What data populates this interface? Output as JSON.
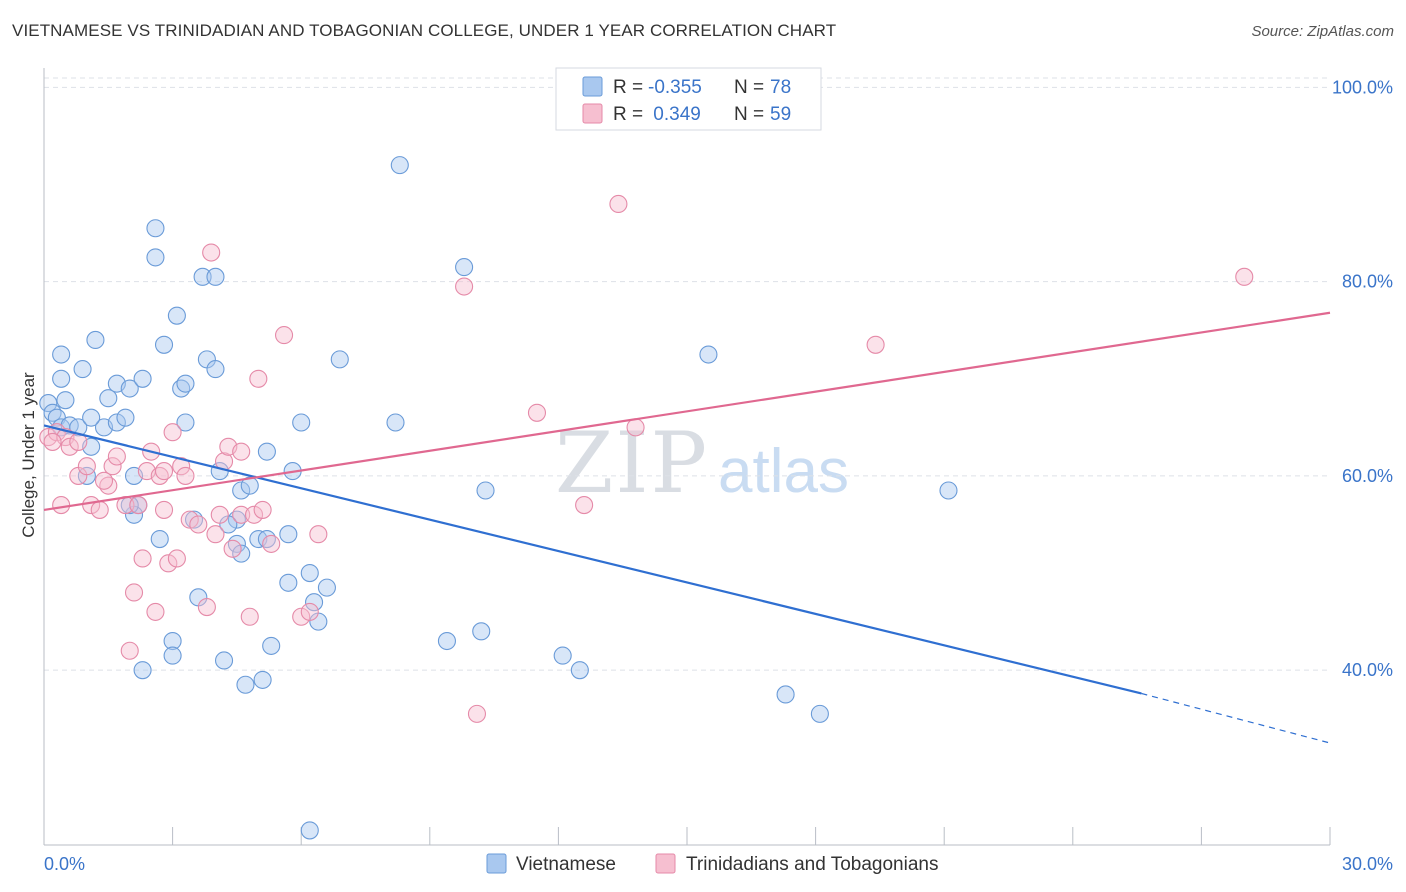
{
  "header": {
    "title": "VIETNAMESE VS TRINIDADIAN AND TOBAGONIAN COLLEGE, UNDER 1 YEAR CORRELATION CHART",
    "source": "Source: ZipAtlas.com"
  },
  "watermark": {
    "zip": "ZIP",
    "atlas": "atlas"
  },
  "legend": {
    "rows": [
      {
        "r_label": "R =",
        "r_value": "-0.355",
        "n_label": "N =",
        "n_value": "78"
      },
      {
        "r_label": "R =",
        "r_value": " 0.349",
        "n_label": "N =",
        "n_value": "59"
      }
    ]
  },
  "bottom_legend": {
    "items": [
      {
        "label": "Vietnamese"
      },
      {
        "label": "Trinidadians and Tobagonians"
      }
    ]
  },
  "colors": {
    "blue_fill": "#a9c8ef",
    "blue_stroke": "#6a9bd8",
    "blue_line": "#2f6fd1",
    "pink_fill": "#f6bfd0",
    "pink_stroke": "#e58aa8",
    "pink_line": "#e06890",
    "grid": "#dde1e7",
    "tick_text": "#3a74c9"
  },
  "chart_data": {
    "type": "scatter",
    "title": "VIETNAMESE VS TRINIDADIAN AND TOBAGONIAN COLLEGE, UNDER 1 YEAR CORRELATION CHART",
    "xlabel": "",
    "ylabel": "College, Under 1 year",
    "xlim": [
      0,
      30
    ],
    "ylim": [
      22,
      102
    ],
    "x_tick_labels": [
      "0.0%",
      "30.0%"
    ],
    "y_ticks": [
      40,
      60,
      80,
      100
    ],
    "y_tick_labels": [
      "40.0%",
      "60.0%",
      "80.0%",
      "100.0%"
    ],
    "legend_position": "top-center",
    "series": [
      {
        "name": "Vietnamese",
        "color": "blue",
        "r": -0.355,
        "n": 78,
        "trend": {
          "x_start": 0,
          "y_start": 65.2,
          "x_solid_end": 25.6,
          "y_solid_end": 37.6,
          "x_end": 30,
          "y_end": 32.5
        },
        "points": [
          [
            0.1,
            67.5
          ],
          [
            0.2,
            66.5
          ],
          [
            0.3,
            66.0
          ],
          [
            0.4,
            65.0
          ],
          [
            0.5,
            67.8
          ],
          [
            0.6,
            65.2
          ],
          [
            0.4,
            72.5
          ],
          [
            0.4,
            70.0
          ],
          [
            0.9,
            71.0
          ],
          [
            1.2,
            74.0
          ],
          [
            1.5,
            68.0
          ],
          [
            0.8,
            65.0
          ],
          [
            1.1,
            63.0
          ],
          [
            1.4,
            65.0
          ],
          [
            1.0,
            60.0
          ],
          [
            1.7,
            69.5
          ],
          [
            2.0,
            69.0
          ],
          [
            2.3,
            70.0
          ],
          [
            1.7,
            65.5
          ],
          [
            1.9,
            66.0
          ],
          [
            2.2,
            57.0
          ],
          [
            2.1,
            56.0
          ],
          [
            2.1,
            60.0
          ],
          [
            2.6,
            85.5
          ],
          [
            2.6,
            82.5
          ],
          [
            2.7,
            53.5
          ],
          [
            3.1,
            76.5
          ],
          [
            2.8,
            73.5
          ],
          [
            3.2,
            69.0
          ],
          [
            3.3,
            69.5
          ],
          [
            3.3,
            65.5
          ],
          [
            3.5,
            55.5
          ],
          [
            3.6,
            47.5
          ],
          [
            3.7,
            80.5
          ],
          [
            3.8,
            72.0
          ],
          [
            4.0,
            80.5
          ],
          [
            4.0,
            71.0
          ],
          [
            4.1,
            60.5
          ],
          [
            4.2,
            41.0
          ],
          [
            4.5,
            55.5
          ],
          [
            4.5,
            53.0
          ],
          [
            4.6,
            52.0
          ],
          [
            4.6,
            58.5
          ],
          [
            4.7,
            38.5
          ],
          [
            4.8,
            59.0
          ],
          [
            5.0,
            53.5
          ],
          [
            5.1,
            39.0
          ],
          [
            5.2,
            53.5
          ],
          [
            5.2,
            62.5
          ],
          [
            5.3,
            42.5
          ],
          [
            5.7,
            49.0
          ],
          [
            5.7,
            54.0
          ],
          [
            5.8,
            60.5
          ],
          [
            6.0,
            65.5
          ],
          [
            6.2,
            50.0
          ],
          [
            6.3,
            47.0
          ],
          [
            6.4,
            45.0
          ],
          [
            6.6,
            48.5
          ],
          [
            6.9,
            72.0
          ],
          [
            3.0,
            43.0
          ],
          [
            3.0,
            41.5
          ],
          [
            2.3,
            40.0
          ],
          [
            8.2,
            65.5
          ],
          [
            8.3,
            92.0
          ],
          [
            9.4,
            43.0
          ],
          [
            9.8,
            81.5
          ],
          [
            10.2,
            44.0
          ],
          [
            10.3,
            58.5
          ],
          [
            12.1,
            41.5
          ],
          [
            12.5,
            40.0
          ],
          [
            15.5,
            72.5
          ],
          [
            17.3,
            37.5
          ],
          [
            18.1,
            35.5
          ],
          [
            21.1,
            58.5
          ],
          [
            6.2,
            23.5
          ],
          [
            2.0,
            57.0
          ],
          [
            1.1,
            66.0
          ],
          [
            4.3,
            55.0
          ]
        ]
      },
      {
        "name": "Trinidadians and Tobagonians",
        "color": "pink",
        "r": 0.349,
        "n": 59,
        "trend": {
          "x_start": 0,
          "y_start": 56.5,
          "x_end": 30,
          "y_end": 76.8
        },
        "points": [
          [
            0.1,
            64.0
          ],
          [
            0.3,
            64.5
          ],
          [
            0.4,
            57.0
          ],
          [
            0.5,
            64.0
          ],
          [
            0.6,
            63.0
          ],
          [
            0.8,
            63.5
          ],
          [
            0.8,
            60.0
          ],
          [
            1.0,
            61.0
          ],
          [
            1.1,
            57.0
          ],
          [
            1.3,
            56.5
          ],
          [
            1.5,
            59.0
          ],
          [
            1.6,
            61.0
          ],
          [
            1.7,
            62.0
          ],
          [
            1.9,
            57.0
          ],
          [
            2.0,
            42.0
          ],
          [
            2.1,
            48.0
          ],
          [
            2.2,
            57.0
          ],
          [
            2.3,
            51.5
          ],
          [
            2.4,
            60.5
          ],
          [
            2.5,
            62.5
          ],
          [
            2.6,
            46.0
          ],
          [
            2.7,
            60.0
          ],
          [
            2.8,
            56.5
          ],
          [
            2.9,
            51.0
          ],
          [
            3.0,
            64.5
          ],
          [
            3.1,
            51.5
          ],
          [
            3.2,
            61.0
          ],
          [
            3.3,
            60.0
          ],
          [
            3.4,
            55.5
          ],
          [
            3.6,
            55.0
          ],
          [
            3.8,
            46.5
          ],
          [
            3.9,
            83.0
          ],
          [
            4.0,
            54.0
          ],
          [
            4.1,
            56.0
          ],
          [
            4.2,
            61.5
          ],
          [
            4.3,
            63.0
          ],
          [
            4.4,
            52.5
          ],
          [
            4.6,
            56.0
          ],
          [
            4.8,
            45.5
          ],
          [
            4.9,
            56.0
          ],
          [
            5.0,
            70.0
          ],
          [
            5.1,
            56.5
          ],
          [
            5.3,
            53.0
          ],
          [
            5.6,
            74.5
          ],
          [
            6.0,
            45.5
          ],
          [
            6.2,
            46.0
          ],
          [
            6.4,
            54.0
          ],
          [
            9.8,
            79.5
          ],
          [
            10.1,
            35.5
          ],
          [
            11.5,
            66.5
          ],
          [
            12.6,
            57.0
          ],
          [
            13.4,
            88.0
          ],
          [
            13.8,
            65.0
          ],
          [
            19.4,
            73.5
          ],
          [
            28.0,
            80.5
          ],
          [
            0.2,
            63.5
          ],
          [
            1.4,
            59.5
          ],
          [
            2.8,
            60.5
          ],
          [
            4.6,
            62.5
          ]
        ]
      }
    ]
  }
}
